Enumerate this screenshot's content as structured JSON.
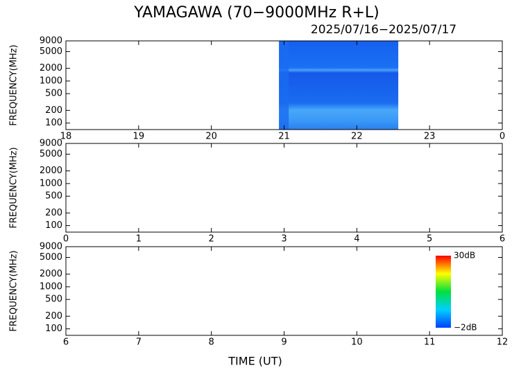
{
  "chart_data": [
    {
      "type": "spectrogram",
      "title": "YAMAGAWA (70−9000MHz R+L)",
      "subtitle": "2025/07/16−2025/07/17",
      "ylabel": "FREQUENCY(MHz)",
      "yscale": "log",
      "ylim": [
        70,
        9000
      ],
      "yticks": [
        100,
        200,
        500,
        1000,
        2000,
        5000,
        9000
      ],
      "xlim": [
        18,
        24
      ],
      "xticks": [
        18,
        19,
        20,
        21,
        22,
        23,
        {
          "value": 24,
          "label": "0"
        }
      ],
      "observed": [
        20.93,
        22.57
      ],
      "color": "#1a6cf0"
    },
    {
      "type": "spectrogram",
      "ylabel": "FREQUENCY(MHz)",
      "yscale": "log",
      "ylim": [
        70,
        9000
      ],
      "yticks": [
        100,
        200,
        500,
        1000,
        2000,
        5000,
        9000
      ],
      "xlim": [
        0,
        6
      ],
      "xticks": [
        0,
        1,
        2,
        3,
        4,
        5,
        6
      ]
    },
    {
      "type": "spectrogram",
      "ylabel": "FREQUENCY(MHz)",
      "xlabel": "TIME (UT)",
      "yscale": "log",
      "ylim": [
        70,
        9000
      ],
      "yticks": [
        100,
        200,
        500,
        1000,
        2000,
        5000,
        9000
      ],
      "xlim": [
        6,
        12
      ],
      "xticks": [
        6,
        7,
        8,
        9,
        10,
        11,
        12
      ],
      "colorbar": {
        "range": [
          -2,
          30
        ],
        "ticks": [
          {
            "value": 30,
            "label": "30dB"
          },
          {
            "value": -2,
            "label": "−2dB"
          }
        ]
      }
    }
  ]
}
